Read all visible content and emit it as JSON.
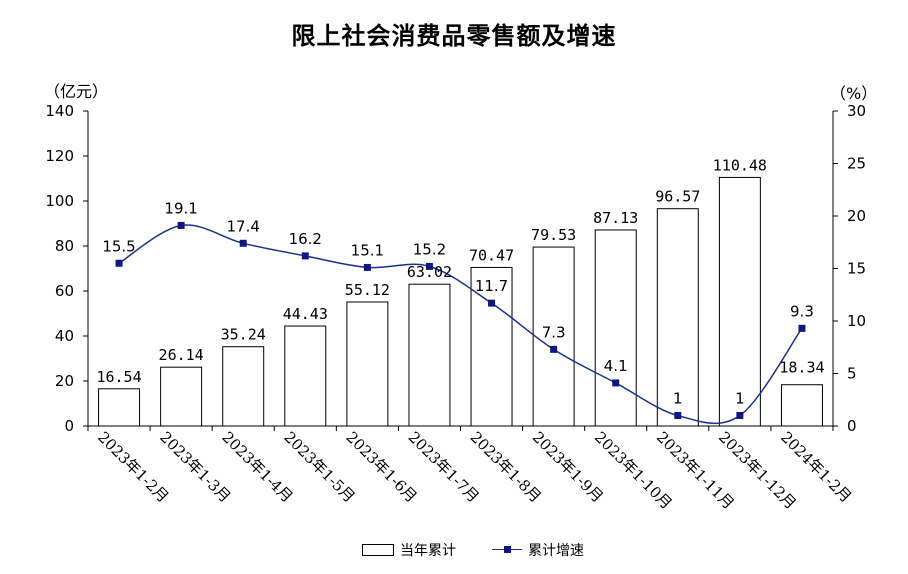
{
  "chart_data": {
    "type": "bar+line",
    "title": "限上社会消费品零售额及增速",
    "ylabel_left": "（亿元）",
    "ylabel_right": "（%）",
    "ylim_left": [
      0,
      140
    ],
    "yticks_left": [
      "0",
      "20",
      "40",
      "60",
      "80",
      "100",
      "120",
      "140"
    ],
    "ylim_right": [
      0,
      30
    ],
    "yticks_right": [
      "0",
      "5",
      "10",
      "15",
      "20",
      "25",
      "30"
    ],
    "categories": [
      "2023年1-2月",
      "2023年1-3月",
      "2023年1-4月",
      "2023年1-5月",
      "2023年1-6月",
      "2023年1-7月",
      "2023年1-8月",
      "2023年1-9月",
      "2023年1-10月",
      "2023年1-11月",
      "2023年1-12月",
      "2024年1-2月"
    ],
    "series": [
      {
        "name": "当年累计",
        "type": "bar",
        "axis": "left",
        "values": [
          16.54,
          26.14,
          35.24,
          44.43,
          55.12,
          63.02,
          70.47,
          79.53,
          87.13,
          96.57,
          110.48,
          18.34
        ],
        "labels": [
          "16.54",
          "26.14",
          "35.24",
          "44.43",
          "55.12",
          "63.02",
          "70.47",
          "79.53",
          "87.13",
          "96.57",
          "110.48",
          "18.34"
        ]
      },
      {
        "name": "累计增速",
        "type": "line",
        "axis": "right",
        "values": [
          15.5,
          19.1,
          17.4,
          16.2,
          15.1,
          15.2,
          11.7,
          7.3,
          4.1,
          1,
          1,
          9.3
        ],
        "labels": [
          "15.5",
          "19.1",
          "17.4",
          "16.2",
          "15.1",
          "15.2",
          "11.7",
          "7.3",
          "4.1",
          "1",
          "1",
          "9.3"
        ]
      }
    ],
    "legend": [
      "当年累计",
      "累计增速"
    ],
    "legend_position": "bottom",
    "colors": {
      "bar_fill": "#ffffff",
      "bar_edge": "#000000",
      "line": "#1f2f8c",
      "marker": "#101880"
    },
    "grid": false
  }
}
